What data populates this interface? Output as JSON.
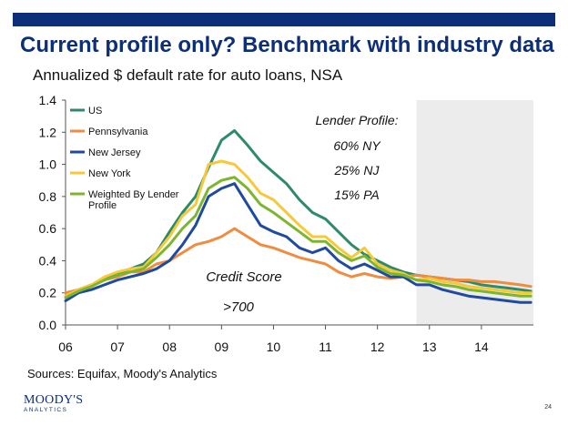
{
  "header": {
    "title": "Current profile only? Benchmark with industry data",
    "subtitle": "Annualized $ default rate for auto loans, NSA"
  },
  "colors": {
    "brand": "#0d2f7a",
    "US": "#2e8b6a",
    "Pennsylvania": "#ef8c3f",
    "New Jersey": "#1f4aa0",
    "New York": "#f7c93a",
    "Weighted By Lender Profile": "#7db62e",
    "shade": "#ececec"
  },
  "chart_data": {
    "type": "line",
    "xlabel": "",
    "ylabel": "",
    "ylim": [
      0,
      1.4
    ],
    "xlim": [
      2006,
      2015
    ],
    "yticks": [
      "0.0",
      "0.2",
      "0.4",
      "0.6",
      "0.8",
      "1.0",
      "1.2",
      "1.4"
    ],
    "xticks": [
      "06",
      "07",
      "08",
      "09",
      "10",
      "11",
      "12",
      "13",
      "14"
    ],
    "grid": false,
    "legend_position": "top-left",
    "shaded_region": [
      2012.75,
      2015
    ],
    "x": [
      2006.0,
      2006.25,
      2006.5,
      2006.75,
      2007.0,
      2007.25,
      2007.5,
      2007.75,
      2008.0,
      2008.25,
      2008.5,
      2008.75,
      2009.0,
      2009.25,
      2009.5,
      2009.75,
      2010.0,
      2010.25,
      2010.5,
      2010.75,
      2011.0,
      2011.25,
      2011.5,
      2011.75,
      2012.0,
      2012.25,
      2012.5,
      2012.75,
      2013.0,
      2013.25,
      2013.5,
      2013.75,
      2014.0,
      2014.25,
      2014.5,
      2014.75,
      2014.95
    ],
    "series": [
      {
        "name": "US",
        "values": [
          0.18,
          0.22,
          0.25,
          0.28,
          0.32,
          0.35,
          0.38,
          0.45,
          0.58,
          0.7,
          0.8,
          0.98,
          1.15,
          1.21,
          1.12,
          1.02,
          0.95,
          0.88,
          0.78,
          0.7,
          0.66,
          0.58,
          0.5,
          0.44,
          0.4,
          0.36,
          0.33,
          0.31,
          0.3,
          0.29,
          0.28,
          0.27,
          0.25,
          0.24,
          0.23,
          0.22,
          0.21
        ]
      },
      {
        "name": "Pennsylvania",
        "values": [
          0.2,
          0.22,
          0.25,
          0.28,
          0.3,
          0.33,
          0.33,
          0.38,
          0.4,
          0.45,
          0.5,
          0.52,
          0.55,
          0.6,
          0.55,
          0.5,
          0.48,
          0.45,
          0.42,
          0.4,
          0.38,
          0.33,
          0.3,
          0.32,
          0.3,
          0.29,
          0.3,
          0.31,
          0.3,
          0.29,
          0.28,
          0.28,
          0.27,
          0.27,
          0.26,
          0.25,
          0.24
        ]
      },
      {
        "name": "New Jersey",
        "values": [
          0.15,
          0.2,
          0.22,
          0.25,
          0.28,
          0.3,
          0.32,
          0.35,
          0.4,
          0.5,
          0.62,
          0.8,
          0.85,
          0.88,
          0.75,
          0.62,
          0.58,
          0.55,
          0.48,
          0.45,
          0.48,
          0.4,
          0.35,
          0.38,
          0.34,
          0.3,
          0.3,
          0.25,
          0.25,
          0.22,
          0.2,
          0.18,
          0.17,
          0.16,
          0.15,
          0.14,
          0.14
        ]
      },
      {
        "name": "New York",
        "values": [
          0.18,
          0.22,
          0.25,
          0.3,
          0.33,
          0.35,
          0.36,
          0.45,
          0.55,
          0.68,
          0.75,
          1.0,
          1.02,
          1.0,
          0.92,
          0.82,
          0.78,
          0.7,
          0.62,
          0.55,
          0.55,
          0.48,
          0.42,
          0.48,
          0.38,
          0.34,
          0.32,
          0.28,
          0.29,
          0.27,
          0.26,
          0.24,
          0.23,
          0.22,
          0.21,
          0.2,
          0.2
        ]
      },
      {
        "name": "Weighted By Lender Profile",
        "values": [
          0.17,
          0.21,
          0.24,
          0.28,
          0.31,
          0.33,
          0.35,
          0.42,
          0.5,
          0.6,
          0.68,
          0.85,
          0.9,
          0.92,
          0.85,
          0.75,
          0.7,
          0.64,
          0.58,
          0.52,
          0.52,
          0.45,
          0.4,
          0.43,
          0.36,
          0.32,
          0.31,
          0.28,
          0.27,
          0.25,
          0.24,
          0.22,
          0.21,
          0.2,
          0.19,
          0.18,
          0.18
        ]
      }
    ],
    "annotations": {
      "lender_title": "Lender Profile:",
      "lender_lines": [
        "60% NY",
        "25% NJ",
        "15% PA"
      ],
      "credit_title": "Credit Score",
      "credit_value": ">700"
    }
  },
  "footer": {
    "source": "Sources: Equifax, Moody's Analytics",
    "logo_main": "MOODY'S",
    "logo_sub": "ANALYTICS",
    "page_number": "24"
  }
}
